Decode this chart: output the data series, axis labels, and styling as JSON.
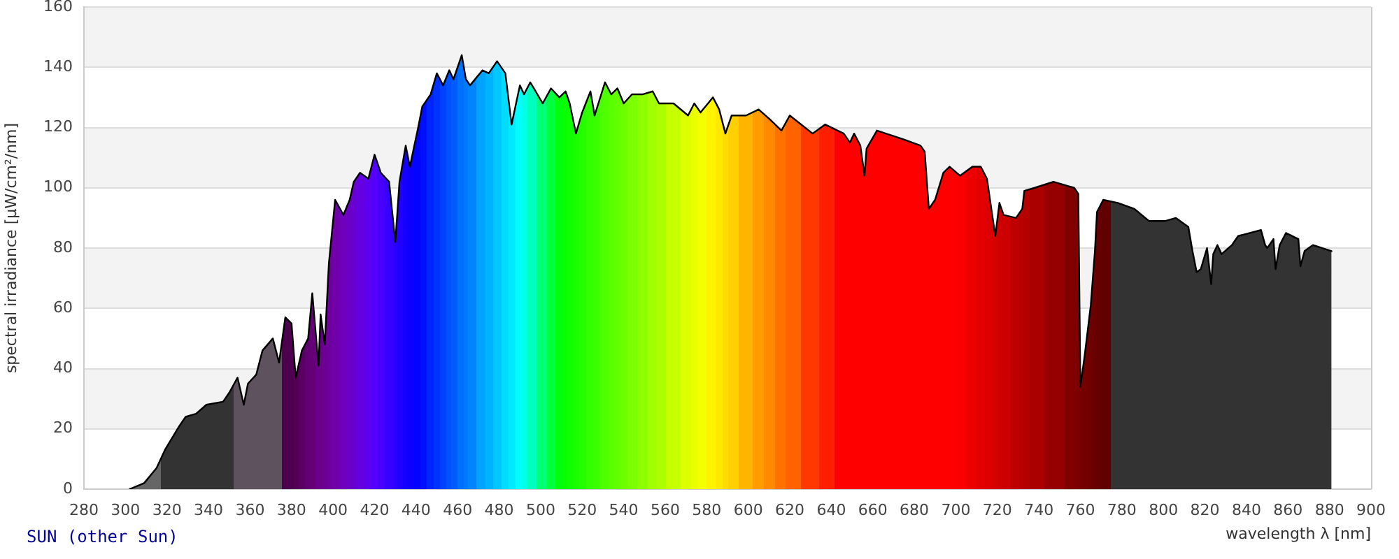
{
  "chart_data": {
    "type": "area",
    "title": "SUN (other Sun)",
    "xlabel": "wavelength λ [nm]",
    "ylabel": "spectral irradiance [µW/cm²/nm]",
    "x": [
      302,
      309,
      315,
      319,
      326,
      329,
      334,
      339,
      347,
      350,
      354,
      357,
      359,
      363,
      366,
      371,
      374,
      377,
      380,
      382,
      385,
      388,
      390,
      393,
      394,
      396,
      398,
      401,
      405,
      408,
      410,
      413,
      417,
      420,
      423,
      427,
      430,
      432,
      435,
      437,
      441,
      443,
      447,
      450,
      453,
      456,
      458,
      462,
      464,
      466,
      472,
      475,
      479,
      483,
      486,
      490,
      492,
      495,
      501,
      505,
      509,
      512,
      514,
      517,
      520,
      524,
      526,
      531,
      534,
      537,
      540,
      544,
      549,
      554,
      557,
      564,
      571,
      574,
      577,
      583,
      586,
      589,
      592,
      599,
      605,
      610,
      616,
      620,
      631,
      637,
      646,
      649,
      651,
      654,
      656,
      657,
      662,
      675,
      683,
      685,
      687,
      690,
      694,
      697,
      702,
      708,
      712,
      715,
      719,
      721,
      723,
      729,
      732,
      733,
      738,
      747,
      757,
      759,
      760,
      762,
      765,
      767,
      768,
      771,
      778,
      786,
      793,
      801,
      806,
      812,
      814,
      816,
      818,
      821,
      823,
      824,
      826,
      828,
      833,
      836,
      847,
      849,
      850,
      853,
      854,
      856,
      859,
      865,
      866,
      868,
      872,
      881
    ],
    "values": [
      0,
      2,
      7,
      13,
      21,
      24,
      25,
      28,
      29,
      32,
      37,
      28,
      35,
      38,
      46,
      50,
      42,
      57,
      55,
      37,
      46,
      50,
      65,
      41,
      58,
      48,
      75,
      96,
      91,
      96,
      102,
      105,
      103,
      111,
      105,
      102,
      82,
      102,
      114,
      107,
      120,
      127,
      131,
      138,
      134,
      139,
      136,
      144,
      136,
      134,
      139,
      138,
      142,
      138,
      121,
      134,
      131,
      135,
      128,
      133,
      130,
      132,
      128,
      118,
      125,
      132,
      124,
      135,
      131,
      133,
      128,
      131,
      131,
      132,
      128,
      128,
      124,
      128,
      125,
      130,
      126,
      118,
      124,
      124,
      126,
      123,
      119,
      124,
      118,
      121,
      118,
      115,
      118,
      114,
      104,
      113,
      119,
      116,
      114,
      112,
      93,
      96,
      105,
      107,
      104,
      107,
      107,
      103,
      84,
      95,
      91,
      90,
      93,
      99,
      100,
      102,
      100,
      98,
      34,
      44,
      61,
      79,
      92,
      96,
      95,
      93,
      89,
      89,
      90,
      87,
      79,
      72,
      73,
      80,
      68,
      78,
      81,
      78,
      81,
      84,
      86,
      81,
      80,
      83,
      73,
      81,
      85,
      83,
      74,
      79,
      81,
      79
    ],
    "color": "#000000",
    "colors": [
      "#666666",
      "#666666",
      "#666666",
      "#333333",
      "#333333",
      "#333333",
      "#333333",
      "#333333",
      "#333333",
      "#333333",
      "#5e525e",
      "#5e525e",
      "#5e525e",
      "#5e525e",
      "#5e525e",
      "#5e525e",
      "#5e525e",
      "#4d004d",
      "#4d004d",
      "#530055",
      "#5b0063",
      "#610070",
      "#650079",
      "#690087",
      "#6b008b",
      "#6c0094",
      "#6e009d",
      "#6f00aa",
      "#6e00bc",
      "#6b00c9",
      "#6900d2",
      "#6500e0",
      "#5d00f2",
      "#5500ff",
      "#4800ff",
      "#3700ff",
      "#2b00ff",
      "#2200ff",
      "#1500ff",
      "#0d00ff",
      "#0005ff",
      "#000fff",
      "#0024ff",
      "#0033ff",
      "#0042ff",
      "#0052ff",
      "#005cff",
      "#0070ff",
      "#007aff",
      "#0085ff",
      "#00a3ff",
      "#00b3ff",
      "#00c7ff",
      "#00dbff",
      "#00ebff",
      "#00ffff",
      "#00ffe6",
      "#00ffbf",
      "#00ff73",
      "#00ff40",
      "#00ff0d",
      "#07ff00",
      "#0fff00",
      "#1aff00",
      "#24ff00",
      "#33ff00",
      "#3aff00",
      "#4dff00",
      "#57ff00",
      "#62ff00",
      "#6dff00",
      "#7cff00",
      "#8eff00",
      "#a0ff00",
      "#abff00",
      "#c5ff00",
      "#deff00",
      "#e9ff00",
      "#f4ff00",
      "#fff300",
      "#ffe700",
      "#ffdc00",
      "#ffd000",
      "#ffb400",
      "#ff9d00",
      "#ff8900",
      "#ff7200",
      "#ff6200",
      "#ff3700",
      "#ff1f00",
      "#ff0000",
      "#ff0000",
      "#ff0000",
      "#ff0000",
      "#ff0000",
      "#ff0000",
      "#ff0000",
      "#ff0000",
      "#ff0000",
      "#ff0000",
      "#ff0000",
      "#ff0000",
      "#ff0000",
      "#ff0000",
      "#fb0000",
      "#ed0000",
      "#e40000",
      "#de0000",
      "#d50000",
      "#d00000",
      "#cc0000",
      "#be0000",
      "#b80000",
      "#b50000",
      "#aa0000",
      "#960000",
      "#800000",
      "#7b0000",
      "#790000",
      "#750000",
      "#6e0000",
      "#6a0000",
      "#670000",
      "#610000",
      "#333333",
      "#333333",
      "#333333",
      "#333333",
      "#333333",
      "#333333",
      "#333333",
      "#333333",
      "#333333",
      "#333333",
      "#333333",
      "#333333",
      "#333333",
      "#333333",
      "#333333",
      "#333333",
      "#333333",
      "#333333",
      "#333333",
      "#333333",
      "#333333",
      "#333333",
      "#333333",
      "#333333",
      "#333333",
      "#333333",
      "#333333",
      "#333333"
    ],
    "xlim": [
      280,
      900
    ],
    "xticks": [
      280,
      300,
      320,
      340,
      360,
      380,
      400,
      420,
      440,
      460,
      480,
      500,
      520,
      540,
      560,
      580,
      600,
      620,
      640,
      660,
      680,
      700,
      720,
      740,
      760,
      780,
      800,
      820,
      840,
      860,
      880,
      900
    ],
    "ylim": [
      0,
      160
    ],
    "yticks": [
      0,
      20,
      40,
      60,
      80,
      100,
      120,
      140,
      160
    ],
    "grid": "y"
  }
}
